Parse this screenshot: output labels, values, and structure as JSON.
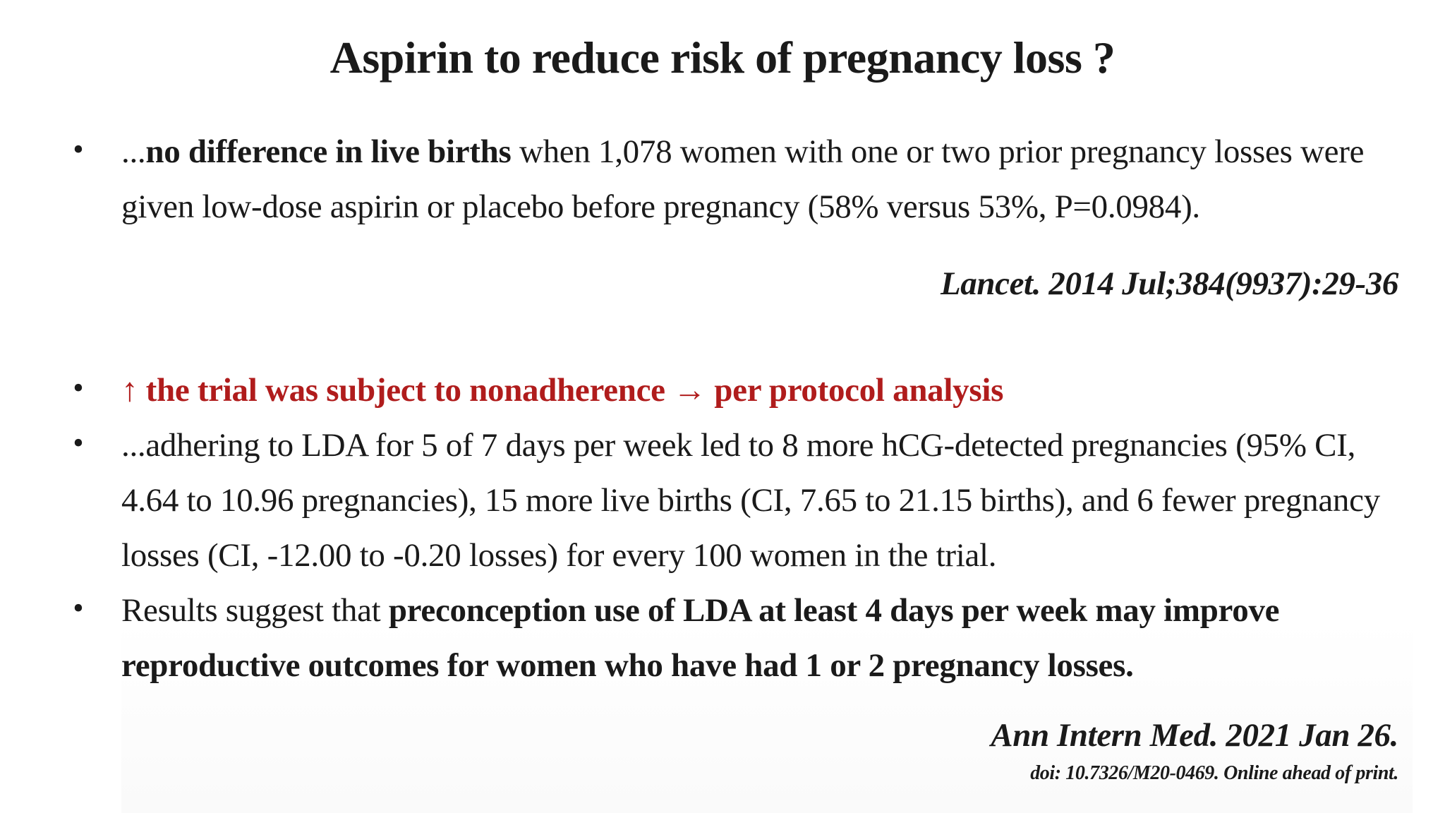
{
  "title": "Aspirin to reduce risk of pregnancy loss ?",
  "bullets": {
    "marker": "•",
    "b1": {
      "prefix": "...",
      "bold": "no difference in live births",
      "rest": " when 1,078 women with one or two prior pregnancy losses were given low-dose aspirin or placebo before pregnancy (58% versus 53%, P=0.0984)."
    },
    "b2": {
      "text": "↑ the trial was subject to nonadherence → per protocol analysis"
    },
    "b3": {
      "text": "...adhering to LDA for 5 of 7 days per week led to 8 more hCG-detected pregnancies (95% CI, 4.64 to 10.96 pregnancies), 15 more live births (CI, 7.65 to 21.15 births), and 6 fewer pregnancy losses (CI, -12.00 to -0.20 losses) for every 100 women in the trial."
    },
    "b4": {
      "prefix": "Results suggest that ",
      "bold": "preconception use of LDA at least 4 days per week may improve reproductive outcomes for women who have had 1 or 2 pregnancy losses."
    }
  },
  "citations": {
    "lancet": "Lancet. 2014 Jul;384(9937):29-36",
    "annals": "Ann Intern Med. 2021 Jan 26.",
    "annals_doi": "doi: 10.7326/M20-0469. Online ahead of print."
  },
  "colors": {
    "accent_red": "#b01c1c",
    "text": "#1a1a1a"
  }
}
